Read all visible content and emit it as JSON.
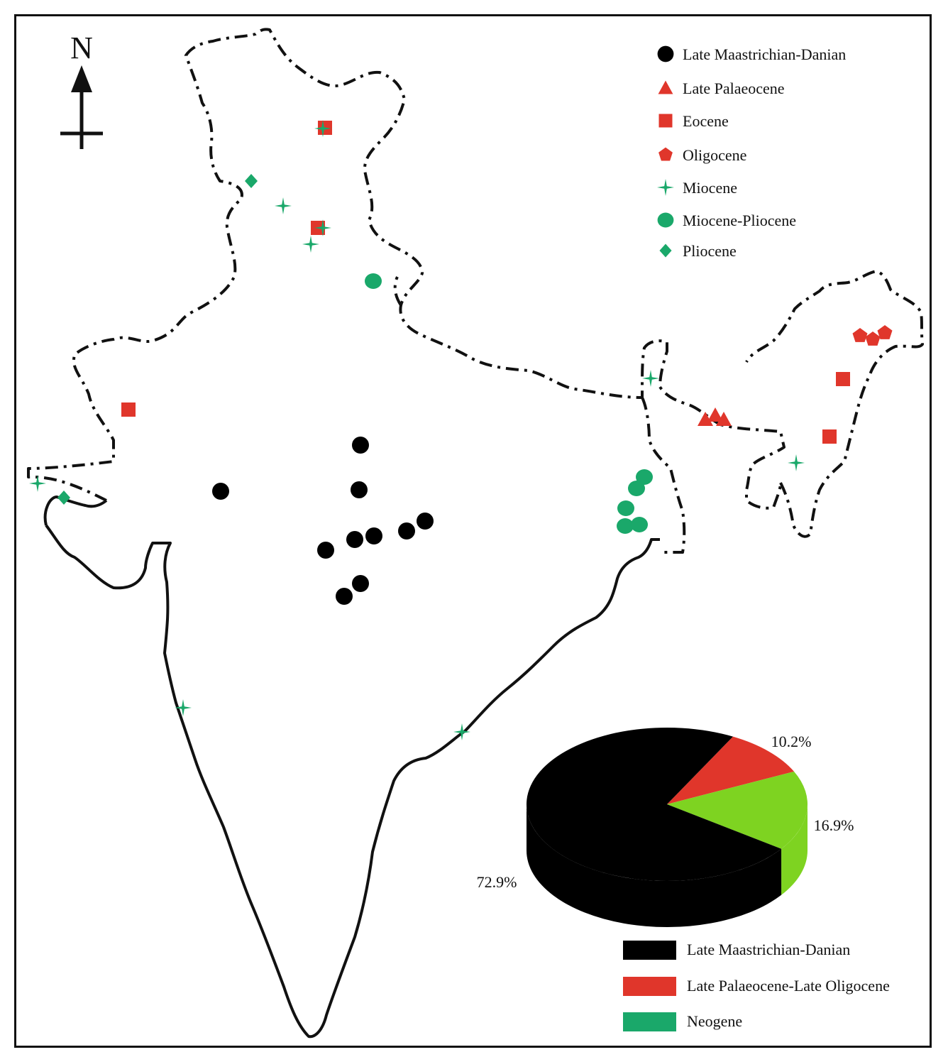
{
  "compass": {
    "label": "N"
  },
  "colors": {
    "black": "#000000",
    "red": "#e0362b",
    "green": "#1aa86a",
    "pie_green": "#7ed321"
  },
  "legend": {
    "items": [
      {
        "label": "Late Maastrichian-Danian",
        "marker": "circle",
        "color": "#000000"
      },
      {
        "label": "Late Palaeocene",
        "marker": "triangle",
        "color": "#e0362b"
      },
      {
        "label": "Eocene",
        "marker": "square",
        "color": "#e0362b"
      },
      {
        "label": "Oligocene",
        "marker": "pentagon",
        "color": "#e0362b"
      },
      {
        "label": "Miocene",
        "marker": "star",
        "color": "#1aa86a"
      },
      {
        "label": "Miocene-Pliocene",
        "marker": "ellipse",
        "color": "#1aa86a"
      },
      {
        "label": "Pliocene",
        "marker": "diamond",
        "color": "#1aa86a"
      }
    ]
  },
  "chart_data": {
    "type": "pie",
    "slices": [
      {
        "label": "72.9%",
        "value": 72.9,
        "color": "#000000"
      },
      {
        "label": "10.2%",
        "value": 10.2,
        "color": "#e0362b"
      },
      {
        "label": "16.9%",
        "value": 16.9,
        "color": "#7ed321"
      }
    ],
    "legend": [
      {
        "label": "Late Maastrichian-Danian",
        "color": "#000000"
      },
      {
        "label": "Late Palaeocene-Late Oligocene",
        "color": "#e0362b"
      },
      {
        "label": "Neogene",
        "color": "#1aa86a"
      }
    ]
  }
}
